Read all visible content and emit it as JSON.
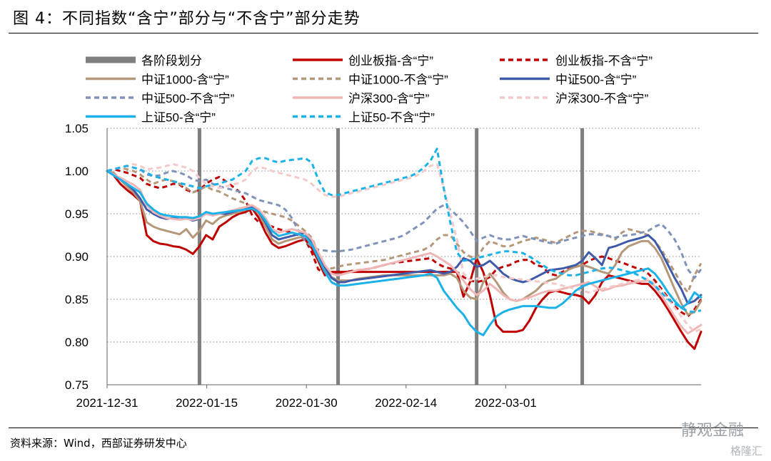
{
  "header": {
    "title": "图 4：不同指数“含宁”部分与“不含宁”部分走势"
  },
  "footer": {
    "source": "资料来源：Wind，西部证券研发中心",
    "watermark_main": "静观金融",
    "watermark_sub": "格隆汇"
  },
  "chart_data": {
    "type": "line",
    "title": "",
    "xlabel": "",
    "ylabel": "",
    "ylim": [
      0.75,
      1.05
    ],
    "yticks": [
      "0.75",
      "0.80",
      "0.85",
      "0.90",
      "0.95",
      "1.00",
      "1.05"
    ],
    "xticks": [
      "2021-12-31",
      "2022-01-15",
      "2022-01-30",
      "2022-02-14",
      "2022-03-01"
    ],
    "grid": "horizontal dotted",
    "legend_position": "top",
    "stage_divider_label": "各阶段划分",
    "stage_dividers": [
      14,
      35,
      56,
      72
    ],
    "x": [
      0,
      1,
      2,
      3,
      4,
      5,
      6,
      7,
      8,
      9,
      10,
      11,
      12,
      13,
      14,
      15,
      16,
      17,
      18,
      19,
      20,
      21,
      22,
      23,
      24,
      25,
      26,
      27,
      28,
      29,
      30,
      31,
      32,
      33,
      34,
      35,
      36,
      37,
      38,
      39,
      40,
      41,
      42,
      43,
      44,
      45,
      46,
      47,
      48,
      49,
      50,
      51,
      52,
      53,
      54,
      55,
      56,
      57,
      58,
      59,
      60,
      61,
      62,
      63,
      64,
      65,
      66,
      67,
      68,
      69,
      70,
      71,
      72,
      73,
      74,
      75,
      76,
      77,
      78,
      79,
      80,
      81,
      82,
      83,
      84,
      85,
      86,
      87,
      88,
      89,
      90
    ],
    "series": [
      {
        "name": "创业板指-含“宁”",
        "color": "#c00000",
        "dash": false,
        "values": [
          1.0,
          0.995,
          0.985,
          0.978,
          0.972,
          0.965,
          0.925,
          0.918,
          0.915,
          0.914,
          0.912,
          0.911,
          0.908,
          0.903,
          0.912,
          0.925,
          0.92,
          0.935,
          0.94,
          0.946,
          0.95,
          0.952,
          0.956,
          0.945,
          0.928,
          0.915,
          0.91,
          0.912,
          0.915,
          0.918,
          0.92,
          0.91,
          0.895,
          0.878,
          0.882,
          0.882,
          0.882,
          0.882,
          0.882,
          0.882,
          0.882,
          0.882,
          0.882,
          0.882,
          0.882,
          0.882,
          0.882,
          0.882,
          0.882,
          0.882,
          0.882,
          0.882,
          0.882,
          0.882,
          0.853,
          0.87,
          0.898,
          0.882,
          0.855,
          0.82,
          0.812,
          0.812,
          0.812,
          0.814,
          0.825,
          0.84,
          0.85,
          0.858,
          0.86,
          0.858,
          0.856,
          0.855,
          0.853,
          0.845,
          0.855,
          0.87,
          0.878,
          0.876,
          0.874,
          0.872,
          0.87,
          0.868,
          0.868,
          0.86,
          0.85,
          0.838,
          0.825,
          0.812,
          0.8,
          0.792,
          0.812
        ]
      },
      {
        "name": "创业板指-不含“宁”",
        "color": "#c00000",
        "dash": true,
        "values": [
          1.0,
          1.002,
          1.0,
          0.998,
          0.995,
          0.992,
          0.985,
          0.982,
          0.98,
          0.982,
          0.985,
          0.984,
          0.978,
          0.975,
          0.978,
          0.985,
          0.99,
          0.993,
          0.988,
          0.982,
          0.976,
          0.965,
          0.948,
          0.94,
          0.938,
          0.935,
          0.932,
          0.93,
          0.928,
          0.925,
          0.92,
          0.905,
          0.885,
          0.88,
          0.88,
          0.88,
          0.882,
          0.883,
          0.884,
          0.885,
          0.886,
          0.888,
          0.89,
          0.892,
          0.893,
          0.894,
          0.895,
          0.896,
          0.897,
          0.898,
          0.892,
          0.888,
          0.886,
          0.882,
          0.876,
          0.872,
          0.87,
          0.872,
          0.876,
          0.885,
          0.888,
          0.89,
          0.894,
          0.896,
          0.896,
          0.89,
          0.888,
          0.88,
          0.878,
          0.882,
          0.886,
          0.888,
          0.89,
          0.895,
          0.898,
          0.9,
          0.898,
          0.895,
          0.893,
          0.89,
          0.887,
          0.885,
          0.88,
          0.872,
          0.862,
          0.852,
          0.842,
          0.835,
          0.83,
          0.838,
          0.85
        ]
      },
      {
        "name": "中证1000-含“宁”",
        "color": "#b5977a",
        "dash": false,
        "values": [
          1.0,
          0.998,
          0.99,
          0.982,
          0.975,
          0.965,
          0.94,
          0.935,
          0.932,
          0.93,
          0.928,
          0.926,
          0.932,
          0.922,
          0.93,
          0.942,
          0.938,
          0.945,
          0.948,
          0.95,
          0.952,
          0.955,
          0.958,
          0.95,
          0.935,
          0.92,
          0.915,
          0.918,
          0.92,
          0.922,
          0.924,
          0.915,
          0.9,
          0.885,
          0.876,
          0.872,
          0.872,
          0.872,
          0.874,
          0.875,
          0.876,
          0.877,
          0.878,
          0.878,
          0.878,
          0.878,
          0.878,
          0.878,
          0.878,
          0.878,
          0.878,
          0.878,
          0.88,
          0.875,
          0.86,
          0.852,
          0.85,
          0.87,
          0.88,
          0.87,
          0.858,
          0.85,
          0.848,
          0.85,
          0.855,
          0.86,
          0.868,
          0.872,
          0.874,
          0.88,
          0.885,
          0.888,
          0.89,
          0.888,
          0.885,
          0.882,
          0.88,
          0.89,
          0.905,
          0.912,
          0.915,
          0.918,
          0.918,
          0.91,
          0.898,
          0.88,
          0.862,
          0.845,
          0.832,
          0.835,
          0.848
        ]
      },
      {
        "name": "中证1000-不含“宁”",
        "color": "#b5977a",
        "dash": true,
        "values": [
          1.0,
          1.002,
          1.004,
          1.002,
          1.0,
          0.996,
          0.99,
          0.985,
          0.988,
          0.99,
          0.988,
          0.985,
          0.98,
          0.975,
          0.978,
          0.982,
          0.978,
          0.976,
          0.972,
          0.968,
          0.965,
          0.962,
          0.958,
          0.955,
          0.952,
          0.95,
          0.948,
          0.946,
          0.942,
          0.936,
          0.93,
          0.922,
          0.905,
          0.888,
          0.886,
          0.888,
          0.89,
          0.891,
          0.892,
          0.893,
          0.894,
          0.895,
          0.896,
          0.898,
          0.9,
          0.902,
          0.904,
          0.906,
          0.908,
          0.912,
          0.92,
          0.925,
          0.925,
          0.915,
          0.905,
          0.9,
          0.898,
          0.91,
          0.918,
          0.915,
          0.912,
          0.912,
          0.915,
          0.918,
          0.92,
          0.922,
          0.92,
          0.918,
          0.916,
          0.92,
          0.924,
          0.928,
          0.93,
          0.93,
          0.928,
          0.926,
          0.924,
          0.92,
          0.928,
          0.932,
          0.93,
          0.928,
          0.925,
          0.918,
          0.908,
          0.895,
          0.882,
          0.868,
          0.858,
          0.878,
          0.892
        ]
      },
      {
        "name": "中证500-含“宁”",
        "color": "#3f5aa8",
        "dash": false,
        "values": [
          1.0,
          0.996,
          0.99,
          0.985,
          0.978,
          0.968,
          0.955,
          0.95,
          0.946,
          0.944,
          0.945,
          0.946,
          0.945,
          0.942,
          0.944,
          0.952,
          0.948,
          0.95,
          0.95,
          0.952,
          0.954,
          0.956,
          0.958,
          0.952,
          0.94,
          0.925,
          0.92,
          0.922,
          0.924,
          0.926,
          0.928,
          0.918,
          0.902,
          0.888,
          0.875,
          0.87,
          0.87,
          0.872,
          0.873,
          0.874,
          0.875,
          0.876,
          0.877,
          0.878,
          0.879,
          0.88,
          0.881,
          0.882,
          0.883,
          0.884,
          0.882,
          0.88,
          0.882,
          0.888,
          0.898,
          0.895,
          0.888,
          0.89,
          0.895,
          0.888,
          0.88,
          0.875,
          0.872,
          0.87,
          0.872,
          0.876,
          0.88,
          0.884,
          0.885,
          0.886,
          0.888,
          0.89,
          0.895,
          0.905,
          0.898,
          0.89,
          0.91,
          0.912,
          0.915,
          0.918,
          0.92,
          0.922,
          0.925,
          0.918,
          0.905,
          0.89,
          0.875,
          0.862,
          0.845,
          0.848,
          0.855
        ]
      },
      {
        "name": "中证500-不含“宁”",
        "color": "#7f93b8",
        "dash": true,
        "values": [
          1.0,
          1.002,
          1.004,
          1.006,
          1.004,
          1.002,
          0.996,
          0.994,
          0.995,
          0.998,
          1.0,
          0.998,
          0.995,
          0.99,
          0.988,
          0.99,
          0.985,
          0.982,
          0.98,
          0.978,
          0.976,
          0.974,
          0.97,
          0.966,
          0.964,
          0.962,
          0.96,
          0.955,
          0.945,
          0.93,
          0.918,
          0.912,
          0.908,
          0.907,
          0.906,
          0.906,
          0.907,
          0.908,
          0.91,
          0.912,
          0.914,
          0.916,
          0.918,
          0.92,
          0.922,
          0.925,
          0.93,
          0.935,
          0.94,
          0.948,
          0.956,
          0.96,
          0.955,
          0.948,
          0.94,
          0.93,
          0.918,
          0.922,
          0.925,
          0.922,
          0.92,
          0.92,
          0.922,
          0.924,
          0.922,
          0.92,
          0.918,
          0.916,
          0.915,
          0.918,
          0.92,
          0.922,
          0.924,
          0.926,
          0.926,
          0.925,
          0.924,
          0.922,
          0.924,
          0.925,
          0.926,
          0.928,
          0.93,
          0.935,
          0.938,
          0.93,
          0.92,
          0.905,
          0.885,
          0.875,
          0.885
        ]
      },
      {
        "name": "沪深300-含“宁”",
        "color": "#f0b6b6",
        "dash": false,
        "values": [
          1.0,
          0.996,
          0.992,
          0.988,
          0.984,
          0.978,
          0.96,
          0.952,
          0.948,
          0.945,
          0.944,
          0.943,
          0.944,
          0.943,
          0.945,
          0.95,
          0.948,
          0.95,
          0.952,
          0.954,
          0.956,
          0.958,
          0.96,
          0.955,
          0.945,
          0.932,
          0.928,
          0.93,
          0.932,
          0.93,
          0.928,
          0.92,
          0.905,
          0.89,
          0.88,
          0.878,
          0.88,
          0.882,
          0.884,
          0.885,
          0.886,
          0.888,
          0.89,
          0.892,
          0.894,
          0.896,
          0.898,
          0.9,
          0.902,
          0.904,
          0.9,
          0.895,
          0.89,
          0.882,
          0.872,
          0.862,
          0.855,
          0.86,
          0.868,
          0.862,
          0.855,
          0.85,
          0.848,
          0.85,
          0.852,
          0.855,
          0.858,
          0.86,
          0.86,
          0.862,
          0.864,
          0.866,
          0.868,
          0.87,
          0.865,
          0.86,
          0.862,
          0.865,
          0.866,
          0.868,
          0.87,
          0.871,
          0.872,
          0.865,
          0.855,
          0.842,
          0.83,
          0.818,
          0.81,
          0.815,
          0.82
        ]
      },
      {
        "name": "沪深300-不含“宁”",
        "color": "#f4c9c9",
        "dash": true,
        "values": [
          1.0,
          1.002,
          1.004,
          1.006,
          1.008,
          1.006,
          1.002,
          1.003,
          1.004,
          1.006,
          1.008,
          1.006,
          1.004,
          1.0,
          0.992,
          0.985,
          0.982,
          0.98,
          0.982,
          0.984,
          0.986,
          0.99,
          1.0,
          1.005,
          1.003,
          1.0,
          0.998,
          0.996,
          0.994,
          0.992,
          0.99,
          0.985,
          0.978,
          0.972,
          0.97,
          0.97,
          0.972,
          0.974,
          0.976,
          0.978,
          0.98,
          0.982,
          0.984,
          0.986,
          0.988,
          0.99,
          0.992,
          0.995,
          1.0,
          1.006,
          1.008,
          0.98,
          0.95,
          0.92,
          0.88,
          0.872,
          0.874,
          0.876,
          0.878,
          0.878,
          0.876,
          0.875,
          0.874,
          0.873,
          0.872,
          0.871,
          0.87,
          0.869,
          0.868,
          0.866,
          0.864,
          0.862,
          0.86,
          0.858,
          0.86,
          0.862,
          0.864,
          0.866,
          0.868,
          0.87,
          0.872,
          0.873,
          0.874,
          0.868,
          0.86,
          0.85,
          0.84,
          0.83,
          0.82,
          0.812,
          0.815
        ]
      },
      {
        "name": "上证50-含“宁”",
        "color": "#1ab2e8",
        "dash": false,
        "values": [
          1.0,
          0.995,
          0.99,
          0.985,
          0.98,
          0.975,
          0.962,
          0.955,
          0.95,
          0.948,
          0.947,
          0.946,
          0.946,
          0.945,
          0.947,
          0.952,
          0.95,
          0.951,
          0.952,
          0.953,
          0.954,
          0.955,
          0.956,
          0.952,
          0.942,
          0.93,
          0.924,
          0.926,
          0.928,
          0.926,
          0.924,
          0.914,
          0.898,
          0.882,
          0.87,
          0.866,
          0.866,
          0.867,
          0.868,
          0.869,
          0.87,
          0.871,
          0.872,
          0.873,
          0.874,
          0.875,
          0.876,
          0.877,
          0.878,
          0.88,
          0.875,
          0.86,
          0.85,
          0.84,
          0.832,
          0.82,
          0.812,
          0.808,
          0.82,
          0.83,
          0.835,
          0.838,
          0.84,
          0.842,
          0.842,
          0.842,
          0.841,
          0.84,
          0.84,
          0.845,
          0.852,
          0.86,
          0.865,
          0.868,
          0.87,
          0.872,
          0.874,
          0.876,
          0.878,
          0.88,
          0.882,
          0.884,
          0.886,
          0.88,
          0.87,
          0.858,
          0.848,
          0.84,
          0.845,
          0.858,
          0.852
        ]
      },
      {
        "name": "上证50-不含“宁”",
        "color": "#1ab2e8",
        "dash": true,
        "values": [
          1.0,
          1.002,
          1.004,
          1.006,
          1.004,
          1.002,
          0.998,
          0.994,
          0.992,
          0.99,
          0.988,
          0.986,
          0.984,
          0.982,
          0.98,
          0.982,
          0.984,
          0.985,
          0.988,
          0.99,
          0.995,
          1.0,
          1.012,
          1.015,
          1.015,
          1.012,
          1.01,
          1.012,
          1.013,
          1.014,
          1.015,
          1.01,
          0.99,
          0.975,
          0.972,
          0.972,
          0.974,
          0.976,
          0.978,
          0.98,
          0.982,
          0.984,
          0.986,
          0.988,
          0.99,
          0.992,
          0.994,
          0.998,
          1.004,
          1.012,
          1.026,
          0.98,
          0.94,
          0.905,
          0.895,
          0.896,
          0.898,
          0.9,
          0.902,
          0.904,
          0.906,
          0.906,
          0.905,
          0.904,
          0.9,
          0.895,
          0.89,
          0.885,
          0.882,
          0.88,
          0.878,
          0.878,
          0.88,
          0.882,
          0.884,
          0.886,
          0.887,
          0.886,
          0.884,
          0.882,
          0.88,
          0.876,
          0.872,
          0.866,
          0.858,
          0.85,
          0.845,
          0.84,
          0.836,
          0.835,
          0.837
        ]
      }
    ]
  }
}
